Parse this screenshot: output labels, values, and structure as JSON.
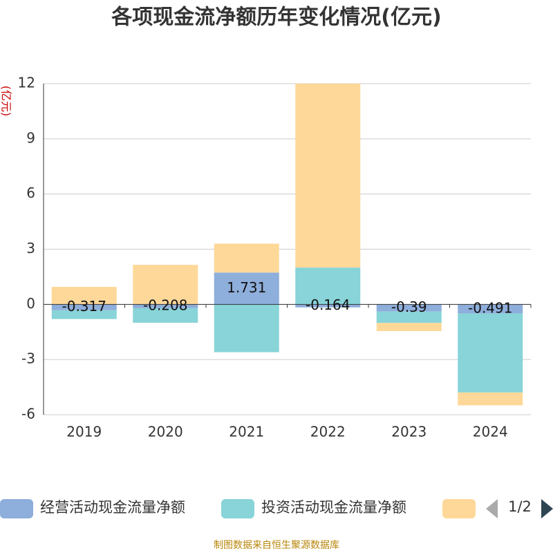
{
  "chart_data": {
    "type": "bar",
    "stacked": true,
    "title": "各项现金流净额历年变化情况(亿元)",
    "y_axis_label": "(亿元)",
    "categories": [
      "2019",
      "2020",
      "2021",
      "2022",
      "2023",
      "2024"
    ],
    "series": [
      {
        "name": "经营活动现金流量净额",
        "color": "#8eaedb",
        "values": [
          -0.317,
          -0.208,
          1.731,
          -0.164,
          -0.39,
          -0.491
        ],
        "show_labels": true
      },
      {
        "name": "投资活动现金流量净额",
        "color": "#88d4d8",
        "values": [
          -0.48,
          -0.79,
          -2.6,
          2.0,
          -0.62,
          -4.3
        ]
      },
      {
        "color": "#fed898",
        "values": [
          0.95,
          2.15,
          1.57,
          10.0,
          -0.44,
          -0.7
        ]
      }
    ],
    "ylim": [
      -6,
      12
    ],
    "yticks": [
      -6,
      -3,
      0,
      3,
      6,
      9,
      12
    ],
    "grid": true,
    "legend_page": "1/2",
    "source": "制图数据来自恒生聚源数据库"
  }
}
